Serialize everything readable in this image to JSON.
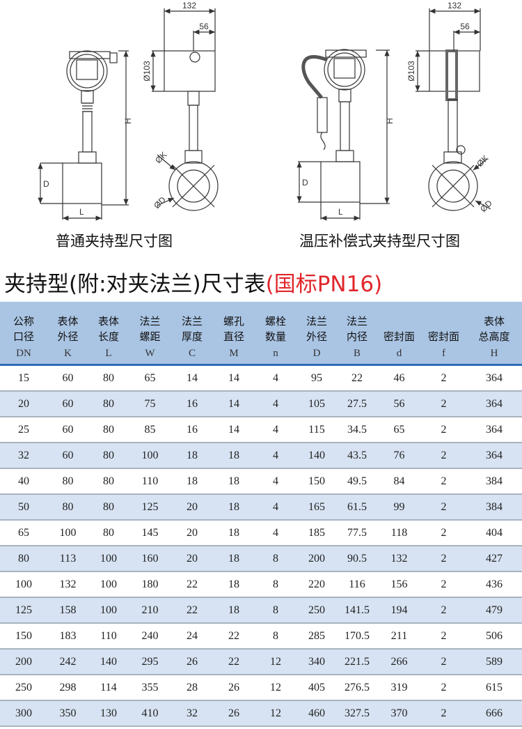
{
  "drawings": {
    "left": {
      "caption": "普通夹持型尺寸图",
      "dim_width": "132",
      "dim_offset": "56",
      "dim_head": "Ø103",
      "dim_height": "H",
      "dim_d": "D",
      "dim_l": "L",
      "dim_k": "ØK",
      "dim_od": "ØD"
    },
    "right": {
      "caption": "温压补偿式夹持型尺寸图",
      "dim_width": "132",
      "dim_offset": "56",
      "dim_head": "Ø103",
      "dim_height": "H",
      "dim_d": "D",
      "dim_l": "L",
      "dim_k": "ØK",
      "dim_od": "ØD"
    }
  },
  "title": {
    "main": "夹持型(附:对夹法兰)尺寸表",
    "standard": "(国标PN16)",
    "accent_color": "#e0262b"
  },
  "table": {
    "header_color": "#aac5e4",
    "columns": [
      {
        "l1": "公称",
        "l2": "口径",
        "sym": "DN"
      },
      {
        "l1": "表体",
        "l2": "外径",
        "sym": "K"
      },
      {
        "l1": "表体",
        "l2": "长度",
        "sym": "L"
      },
      {
        "l1": "法兰",
        "l2": "螺距",
        "sym": "W"
      },
      {
        "l1": "法兰",
        "l2": "厚度",
        "sym": "C"
      },
      {
        "l1": "螺孔",
        "l2": "直径",
        "sym": "M"
      },
      {
        "l1": "螺栓",
        "l2": "数量",
        "sym": "n"
      },
      {
        "l1": "法兰",
        "l2": "外径",
        "sym": "D"
      },
      {
        "l1": "法兰",
        "l2": "内径",
        "sym": "B"
      },
      {
        "l1": "",
        "l2": "密封面",
        "sym": "d"
      },
      {
        "l1": "",
        "l2": "密封面",
        "sym": "f"
      },
      {
        "l1": "表体",
        "l2": "总高度",
        "sym": "H"
      }
    ],
    "rows": [
      [
        "15",
        "60",
        "80",
        "65",
        "14",
        "14",
        "4",
        "95",
        "22",
        "46",
        "2",
        "364"
      ],
      [
        "20",
        "60",
        "80",
        "75",
        "16",
        "14",
        "4",
        "105",
        "27.5",
        "56",
        "2",
        "364"
      ],
      [
        "25",
        "60",
        "80",
        "85",
        "16",
        "14",
        "4",
        "115",
        "34.5",
        "65",
        "2",
        "364"
      ],
      [
        "32",
        "60",
        "80",
        "100",
        "18",
        "18",
        "4",
        "140",
        "43.5",
        "76",
        "2",
        "364"
      ],
      [
        "40",
        "80",
        "80",
        "110",
        "18",
        "18",
        "4",
        "150",
        "49.5",
        "84",
        "2",
        "384"
      ],
      [
        "50",
        "80",
        "80",
        "125",
        "20",
        "18",
        "4",
        "165",
        "61.5",
        "99",
        "2",
        "384"
      ],
      [
        "65",
        "100",
        "80",
        "145",
        "20",
        "18",
        "4",
        "185",
        "77.5",
        "118",
        "2",
        "404"
      ],
      [
        "80",
        "113",
        "100",
        "160",
        "20",
        "18",
        "8",
        "200",
        "90.5",
        "132",
        "2",
        "427"
      ],
      [
        "100",
        "132",
        "100",
        "180",
        "22",
        "18",
        "8",
        "220",
        "116",
        "156",
        "2",
        "436"
      ],
      [
        "125",
        "158",
        "100",
        "210",
        "22",
        "18",
        "8",
        "250",
        "141.5",
        "194",
        "2",
        "479"
      ],
      [
        "150",
        "183",
        "110",
        "240",
        "24",
        "22",
        "8",
        "285",
        "170.5",
        "211",
        "2",
        "506"
      ],
      [
        "200",
        "242",
        "140",
        "295",
        "26",
        "22",
        "12",
        "340",
        "221.5",
        "266",
        "2",
        "589"
      ],
      [
        "250",
        "298",
        "114",
        "355",
        "28",
        "26",
        "12",
        "405",
        "276.5",
        "319",
        "2",
        "615"
      ],
      [
        "300",
        "350",
        "130",
        "410",
        "32",
        "26",
        "12",
        "460",
        "327.5",
        "370",
        "2",
        "666"
      ]
    ]
  }
}
